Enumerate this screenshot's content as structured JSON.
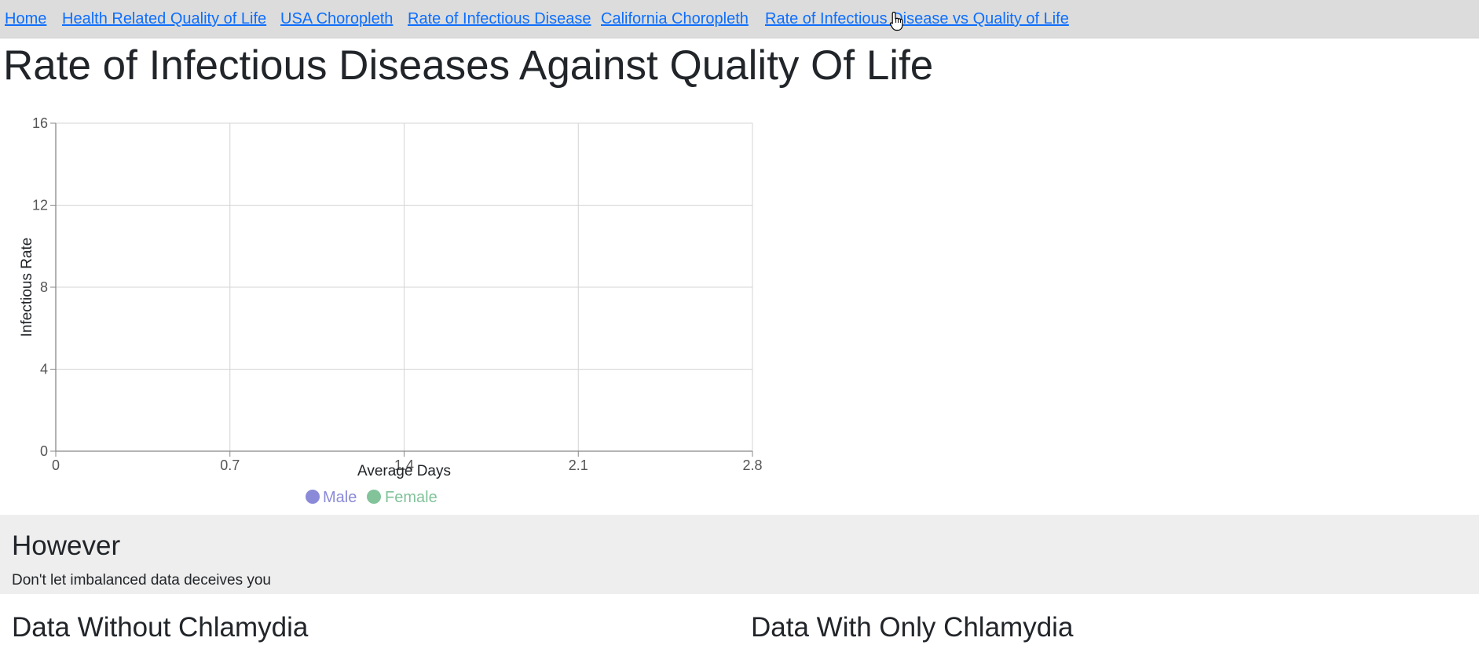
{
  "nav": {
    "links": [
      {
        "label": "Home"
      },
      {
        "label": "Health Related Quality of Life"
      },
      {
        "label": "USA Choropleth"
      },
      {
        "label": "Rate of Infectious Disease"
      },
      {
        "label": "California Choropleth"
      },
      {
        "label": "Rate of Infectious Disease vs Quality of Life"
      }
    ]
  },
  "page": {
    "title": "Rate of Infectious Diseases Against Quality Of Life"
  },
  "chart_data": {
    "type": "scatter",
    "title": "",
    "xlabel": "Average Days",
    "ylabel": "Infectious Rate",
    "xlim": [
      0,
      2.8
    ],
    "ylim": [
      0,
      16
    ],
    "x_ticks": [
      "0",
      "0.7",
      "1.4",
      "2.1",
      "2.8"
    ],
    "y_ticks": [
      "0",
      "4",
      "8",
      "12",
      "16"
    ],
    "grid": true,
    "legend_position": "bottom-center",
    "series": [
      {
        "name": "Male",
        "color": "#8a8ad8",
        "points": []
      },
      {
        "name": "Female",
        "color": "#82c39a",
        "points": []
      }
    ]
  },
  "however": {
    "heading": "However",
    "text": "Don't let imbalanced data deceives you"
  },
  "sections": {
    "left_title": "Data Without Chlamydia",
    "right_title": "Data With Only Chlamydia"
  }
}
